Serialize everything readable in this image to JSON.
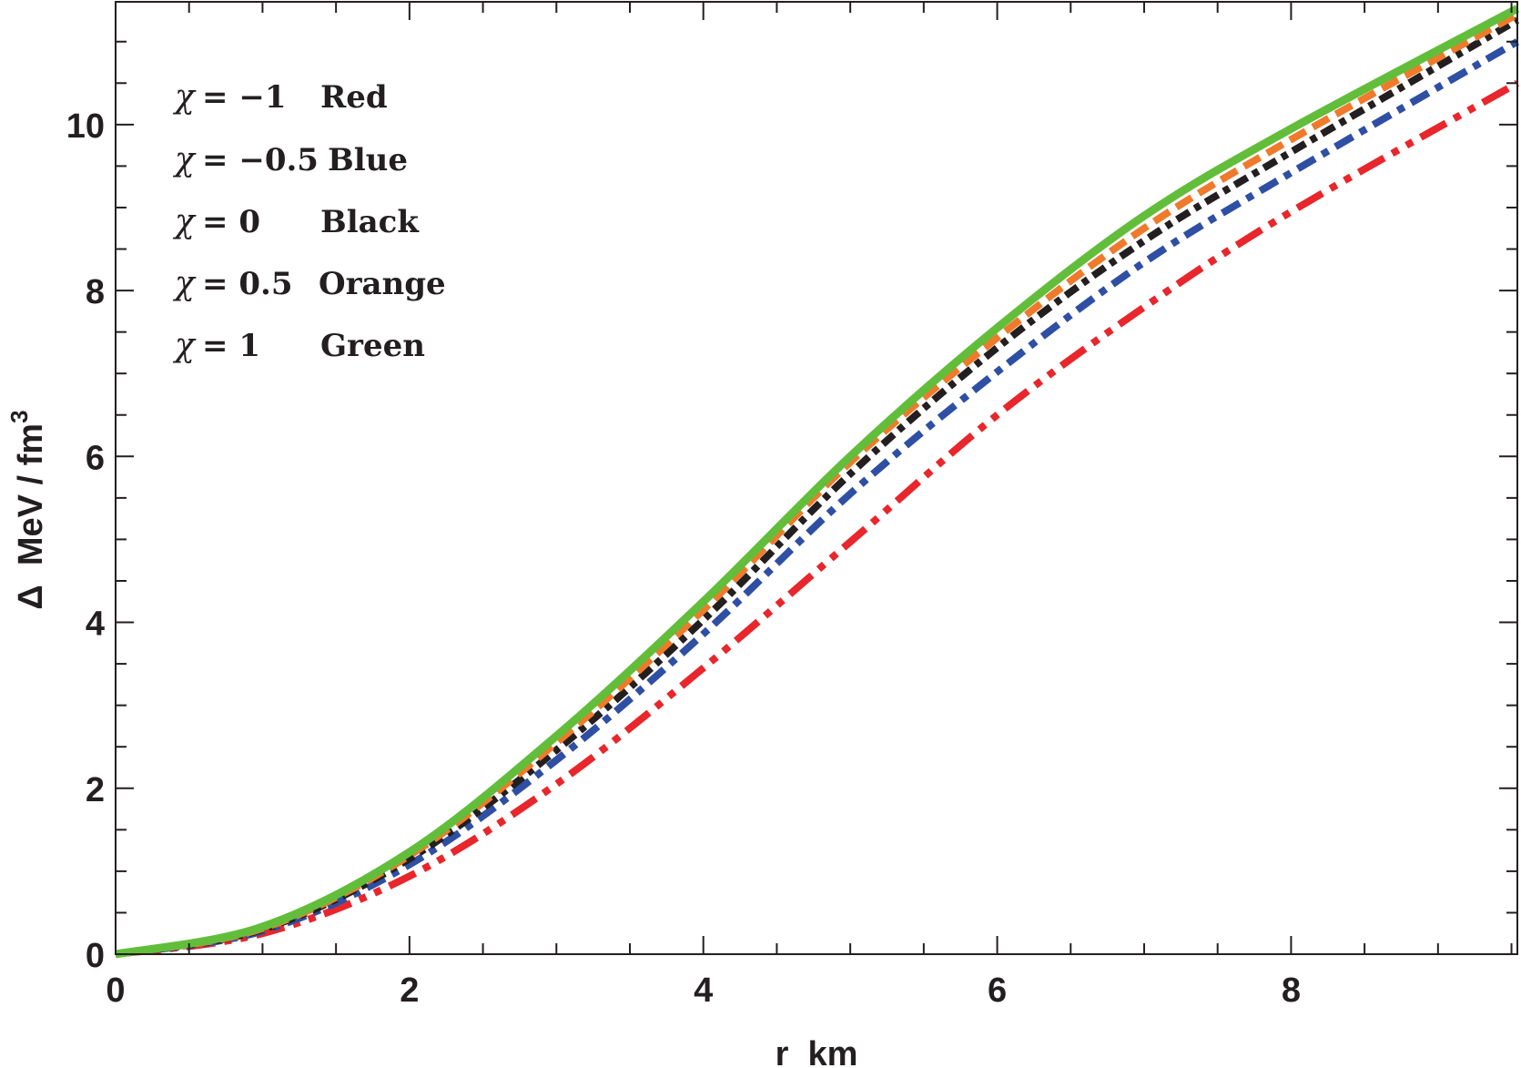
{
  "chart_data": {
    "type": "line",
    "title": "",
    "xlabel": "r  km",
    "ylabel": "Δ  MeV / fm",
    "ylabel_sup": "3",
    "xlim": [
      0,
      9.54
    ],
    "ylim": [
      0,
      11.48
    ],
    "xticks": [
      0,
      2,
      4,
      6,
      8
    ],
    "yticks": [
      0,
      2,
      4,
      6,
      8,
      10
    ],
    "grid": false,
    "legend_position": "top-left",
    "x": [
      0,
      1,
      2,
      3,
      4,
      5,
      6,
      7,
      8,
      9.54
    ],
    "series": [
      {
        "name": "χ = −1",
        "legend_label": "Red",
        "chi": "−1",
        "color": "#e8262b",
        "dash": "32 10 8 10 8 10",
        "values": [
          0,
          0.25,
          0.94,
          2.05,
          3.45,
          4.97,
          6.5,
          7.8,
          8.95,
          10.5
        ]
      },
      {
        "name": "χ = −0.5",
        "legend_label": "Blue",
        "chi": "−0.5",
        "color": "#2e4fa3",
        "dash": "22 9 8 9",
        "values": [
          0,
          0.28,
          1.08,
          2.34,
          3.86,
          5.55,
          7.02,
          8.34,
          9.42,
          11.0
        ]
      },
      {
        "name": "χ = 0",
        "legend_label": "Black",
        "chi": "0",
        "color": "#231f20",
        "dash": "16 7 7 7",
        "values": [
          0,
          0.3,
          1.15,
          2.46,
          4.03,
          5.79,
          7.31,
          8.6,
          9.67,
          11.26
        ]
      },
      {
        "name": "χ = 0.5",
        "legend_label": "Orange",
        "chi": "0.5",
        "color": "#ef7a2b",
        "dash": "20 9",
        "values": [
          0,
          0.31,
          1.19,
          2.55,
          4.15,
          5.93,
          7.43,
          8.75,
          9.82,
          11.33
        ]
      },
      {
        "name": "χ = 1",
        "legend_label": "Green",
        "chi": "1",
        "color": "#62be3a",
        "dash": "",
        "values": [
          0,
          0.33,
          1.23,
          2.63,
          4.25,
          6.0,
          7.55,
          8.9,
          9.95,
          11.4
        ]
      }
    ]
  }
}
